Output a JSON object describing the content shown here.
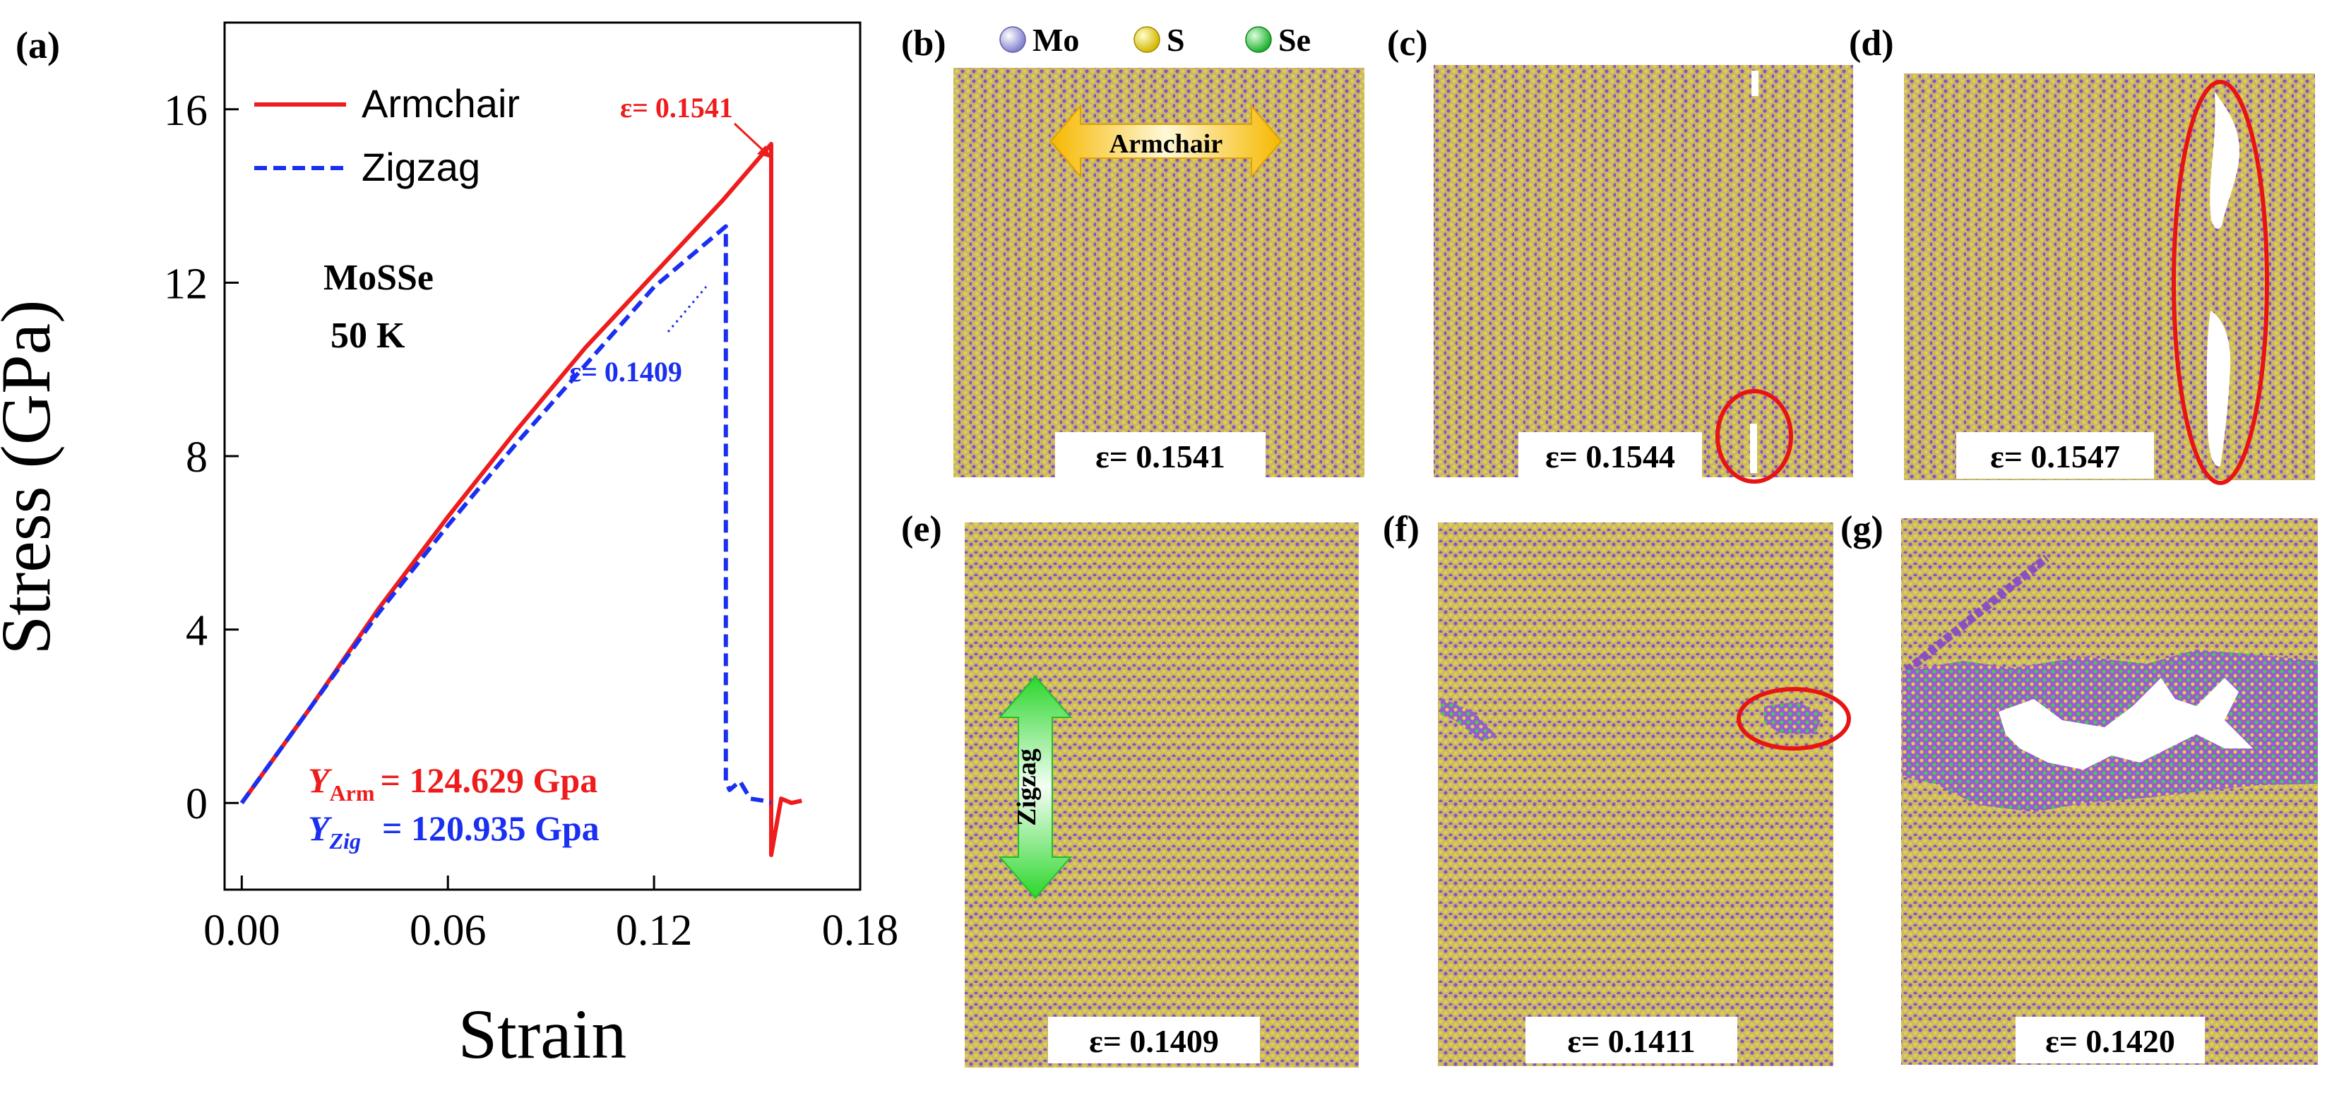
{
  "panel_a": {
    "label": "(a)",
    "material": "MoSSe",
    "temperature": "50 K",
    "annotation_arm": "ε= 0.1541",
    "annotation_zig": "ε= 0.1409",
    "young_arm_symbol": "Y",
    "young_arm_sub": "Arm",
    "young_arm_value": "= 124.629 Gpa",
    "young_zig_symbol": "Y",
    "young_zig_sub": "Zig",
    "young_zig_value": "= 120.935 Gpa"
  },
  "legend_atoms": [
    {
      "name": "Mo",
      "color": "#9b9be0"
    },
    {
      "name": "S",
      "color": "#e8d23a"
    },
    {
      "name": "Se",
      "color": "#3fd34a"
    }
  ],
  "atom_colors": {
    "base": "#c7b66a",
    "purple": "#8a4fc0",
    "yellow": "#e0d04a",
    "green": "#3fd34a",
    "highlight": "#e81414"
  },
  "direction_labels": {
    "armchair": "Armchair",
    "zigzag": "Zigzag"
  },
  "snapshots": [
    {
      "label": "(b)",
      "strain": "ε= 0.1541"
    },
    {
      "label": "(c)",
      "strain": "ε= 0.1544"
    },
    {
      "label": "(d)",
      "strain": "ε= 0.1547"
    },
    {
      "label": "(e)",
      "strain": "ε= 0.1409"
    },
    {
      "label": "(f)",
      "strain": "ε= 0.1411"
    },
    {
      "label": "(g)",
      "strain": "ε= 0.1420"
    }
  ],
  "chart_data": {
    "type": "line",
    "title": "",
    "xlabel": "Strain",
    "ylabel": "Stress (GPa)",
    "xlim": [
      -0.005,
      0.18
    ],
    "ylim": [
      -2,
      18
    ],
    "xticks": [
      0.0,
      0.06,
      0.12,
      0.18
    ],
    "xtick_labels": [
      "0.00",
      "0.06",
      "0.12",
      "0.18"
    ],
    "yticks": [
      0,
      4,
      8,
      12,
      16
    ],
    "ytick_labels": [
      "0",
      "4",
      "8",
      "12",
      "16"
    ],
    "legend_position": "top-left",
    "series": [
      {
        "name": "Armchair",
        "color": "#ee1c1c",
        "style": "solid",
        "x": [
          0.0,
          0.02,
          0.04,
          0.06,
          0.08,
          0.1,
          0.12,
          0.14,
          0.1541,
          0.1541,
          0.1541,
          0.157,
          0.16,
          0.163
        ],
        "y": [
          0.0,
          2.2,
          4.5,
          6.6,
          8.6,
          10.5,
          12.2,
          13.9,
          15.2,
          3.0,
          -1.2,
          0.1,
          0.0,
          0.05
        ]
      },
      {
        "name": "Zigzag",
        "color": "#1a2ff0",
        "style": "dashed",
        "x": [
          0.0,
          0.02,
          0.04,
          0.06,
          0.08,
          0.1,
          0.12,
          0.1409,
          0.1409,
          0.142,
          0.145,
          0.148,
          0.152,
          0.154
        ],
        "y": [
          0.0,
          2.2,
          4.4,
          6.4,
          8.3,
          10.1,
          11.9,
          13.3,
          0.5,
          0.3,
          0.5,
          0.1,
          0.05,
          0.0
        ]
      }
    ]
  }
}
